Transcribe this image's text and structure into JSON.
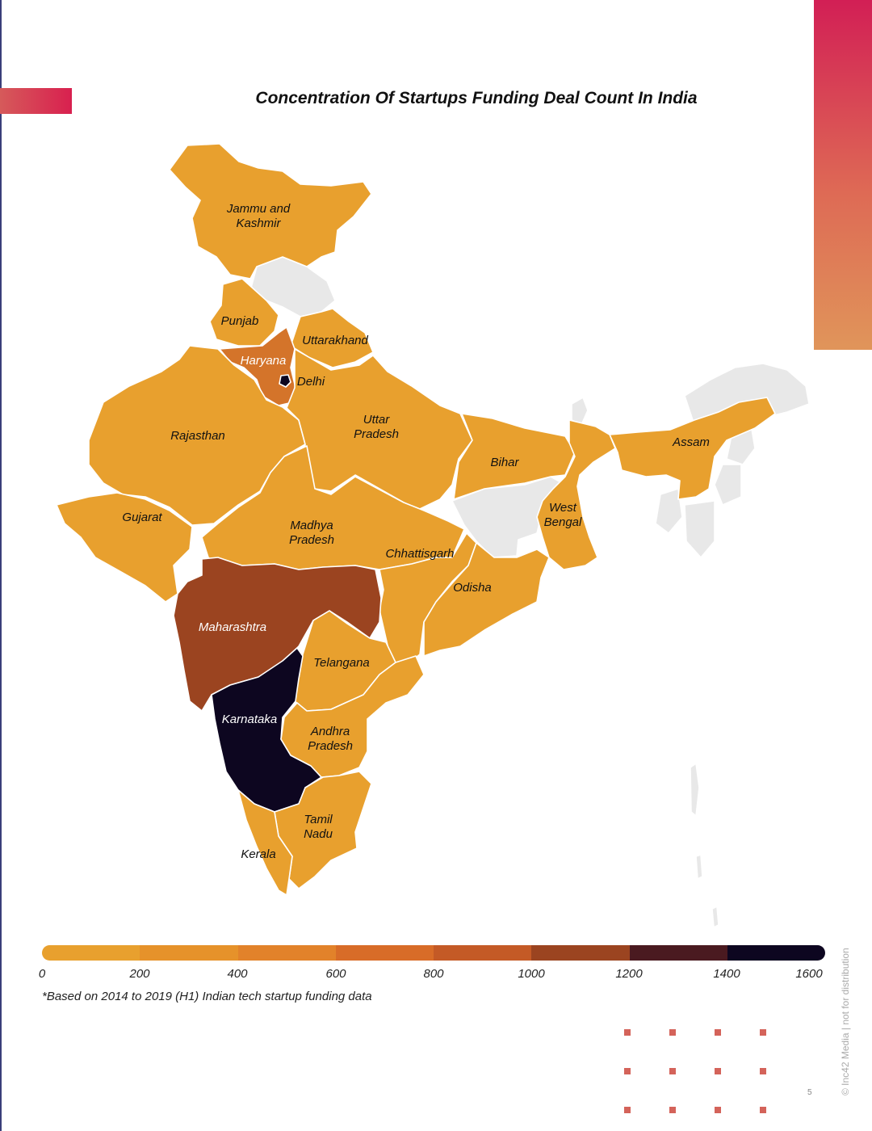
{
  "title": "Concentration Of Startups Funding Deal Count In India",
  "footnote": "*Based on 2014 to 2019 (H1) Indian tech startup funding data",
  "page_number": "5",
  "copyright": "© Inc42 Media | not for distribution",
  "colors": {
    "corner_gradient": [
      "#d21f55",
      "#e0955a"
    ],
    "title_tab": "#d8204f",
    "no_data": "#e8e8e8",
    "state_border": "#ffffff",
    "dot_pattern": "#d4635a"
  },
  "legend": {
    "ticks": [
      "0",
      "200",
      "400",
      "600",
      "800",
      "1000",
      "1200",
      "1400",
      "1600"
    ],
    "colors": [
      "#e8a02e",
      "#e6922a",
      "#e2822a",
      "#d86c28",
      "#c45a26",
      "#9b4420",
      "#4a1a20",
      "#0d0620"
    ]
  },
  "states": [
    {
      "name": "Jammu and Kashmir",
      "label": [
        "Jammu and",
        "Kashmir"
      ],
      "deal_range": "0-200",
      "color": "#e8a02e"
    },
    {
      "name": "Punjab",
      "label": [
        "Punjab"
      ],
      "deal_range": "0-200",
      "color": "#e8a02e"
    },
    {
      "name": "Uttarakhand",
      "label": [
        "Uttarakhand"
      ],
      "deal_range": "0-200",
      "color": "#e8a02e"
    },
    {
      "name": "Haryana",
      "label": [
        "Haryana"
      ],
      "deal_range": "600-800",
      "color": "#d4742a"
    },
    {
      "name": "Delhi",
      "label": [
        "Delhi"
      ],
      "deal_range": "1400-1600",
      "color": "#0d0620"
    },
    {
      "name": "Rajasthan",
      "label": [
        "Rajasthan"
      ],
      "deal_range": "0-200",
      "color": "#e8a02e"
    },
    {
      "name": "Uttar Pradesh",
      "label": [
        "Uttar",
        "Pradesh"
      ],
      "deal_range": "0-200",
      "color": "#e8a02e"
    },
    {
      "name": "Bihar",
      "label": [
        "Bihar"
      ],
      "deal_range": "0-200",
      "color": "#e8a02e"
    },
    {
      "name": "Assam",
      "label": [
        "Assam"
      ],
      "deal_range": "0-200",
      "color": "#e8a02e"
    },
    {
      "name": "West Bengal",
      "label": [
        "West",
        "Bengal"
      ],
      "deal_range": "0-200",
      "color": "#e8a02e"
    },
    {
      "name": "Gujarat",
      "label": [
        "Gujarat"
      ],
      "deal_range": "0-200",
      "color": "#e8a02e"
    },
    {
      "name": "Madhya Pradesh",
      "label": [
        "Madhya",
        "Pradesh"
      ],
      "deal_range": "0-200",
      "color": "#e8a02e"
    },
    {
      "name": "Chhattisgarh",
      "label": [
        "Chhattisgarh"
      ],
      "deal_range": "0-200",
      "color": "#e8a02e"
    },
    {
      "name": "Odisha",
      "label": [
        "Odisha"
      ],
      "deal_range": "0-200",
      "color": "#e8a02e"
    },
    {
      "name": "Maharashtra",
      "label": [
        "Maharashtra"
      ],
      "deal_range": "1000-1200",
      "color": "#9b4420"
    },
    {
      "name": "Telangana",
      "label": [
        "Telangana"
      ],
      "deal_range": "0-200",
      "color": "#e8a02e"
    },
    {
      "name": "Karnataka",
      "label": [
        "Karnataka"
      ],
      "deal_range": "1400-1600",
      "color": "#0d0620"
    },
    {
      "name": "Andhra Pradesh",
      "label": [
        "Andhra",
        "Pradesh"
      ],
      "deal_range": "0-200",
      "color": "#e8a02e"
    },
    {
      "name": "Tamil Nadu",
      "label": [
        "Tamil",
        "Nadu"
      ],
      "deal_range": "0-200",
      "color": "#e8a02e"
    },
    {
      "name": "Kerala",
      "label": [
        "Kerala"
      ],
      "deal_range": "0-200",
      "color": "#e8a02e"
    }
  ]
}
